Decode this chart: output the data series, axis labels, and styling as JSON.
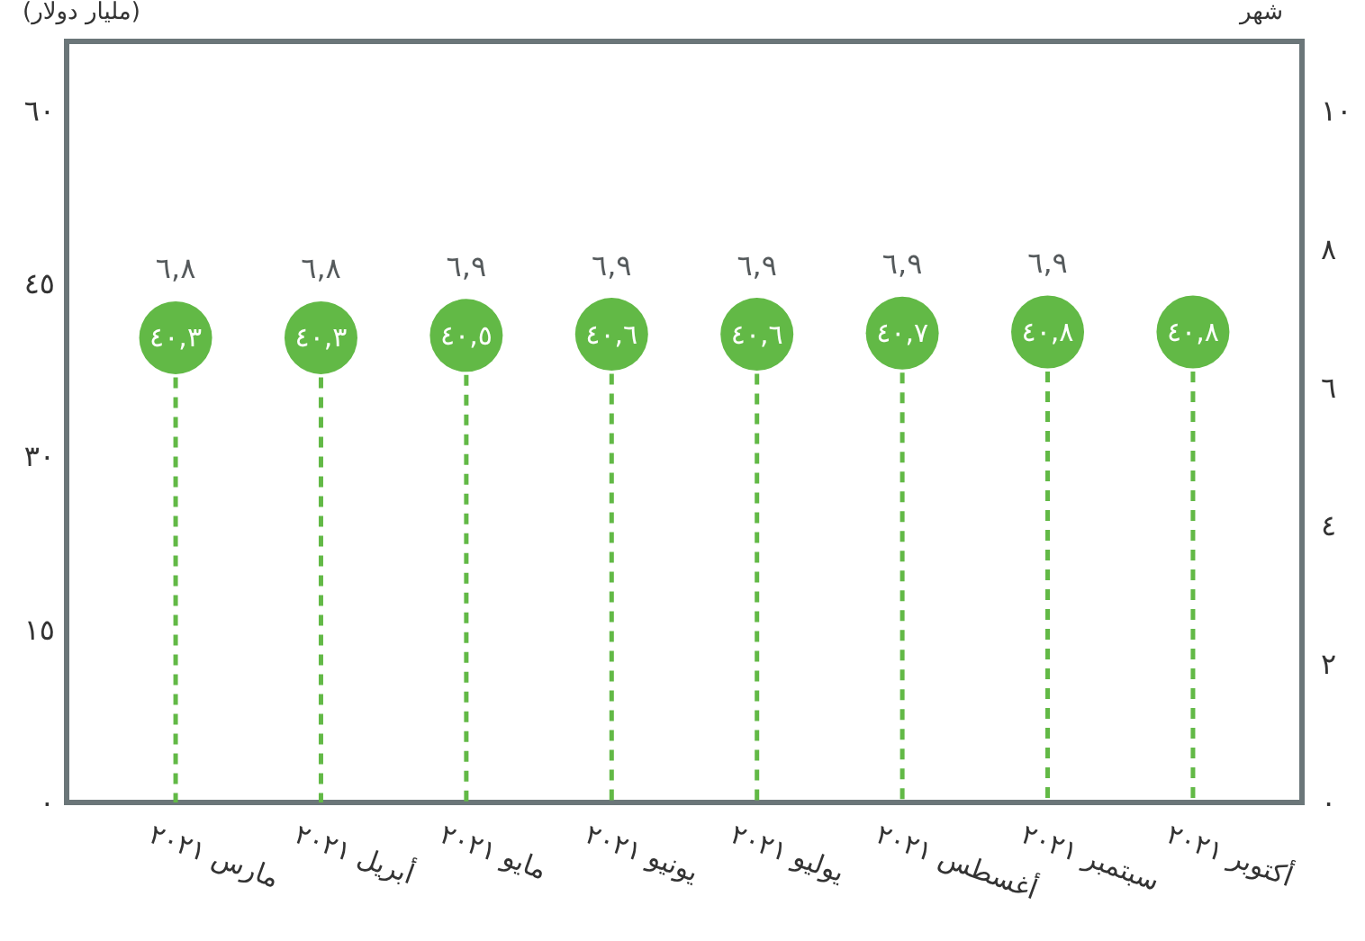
{
  "chart_data": {
    "type": "lollipop",
    "ylabel": "(مليار دولار)",
    "y2label": "شهر",
    "categories": [
      "مارس ٢٠٢١",
      "أبريل ٢٠٢١",
      "مايو ٢٠٢١",
      "يونيو ٢٠٢١",
      "يوليو ٢٠٢١",
      "أغسطس ٢٠٢١",
      "سبتمبر ٢٠٢١",
      "أكتوبر ٢٠٢١"
    ],
    "series": [
      {
        "color": "#62b946",
        "values": [
          40.3,
          40.3,
          40.5,
          40.6,
          40.6,
          40.7,
          40.8,
          40.8
        ],
        "value_labels": [
          "٤٠,٣",
          "٤٠,٣",
          "٤٠,٥",
          "٤٠,٦",
          "٤٠,٦",
          "٤٠,٧",
          "٤٠,٨",
          "٤٠,٨"
        ]
      }
    ],
    "marker": "circle",
    "line_style": "dashed",
    "annotations": [
      {
        "text": "٦,٨",
        "x": "مارس ٢٠٢١",
        "y": 40.3
      },
      {
        "text": "٦,٨",
        "x": "أبريل ٢٠٢١",
        "y": 40.3
      },
      {
        "text": "٦,٩",
        "x": "مايو ٢٠٢١",
        "y": 40.5
      },
      {
        "text": "٦,٩",
        "x": "يونيو ٢٠٢١",
        "y": 40.6
      },
      {
        "text": "٦,٩",
        "x": "يوليو ٢٠٢١",
        "y": 40.6
      },
      {
        "text": "٦,٩",
        "x": "أغسطس ٢٠٢١",
        "y": 40.7
      },
      {
        "text": "٦,٩",
        "x": "سبتمبر ٢٠٢١",
        "y": 40.8
      }
    ],
    "ylim": [
      0,
      66
    ],
    "yticks": [
      {
        "value": 0,
        "label": "٠"
      },
      {
        "value": 15,
        "label": "١٥"
      },
      {
        "value": 30,
        "label": "٣٠"
      },
      {
        "value": 45,
        "label": "٤٥"
      },
      {
        "value": 60,
        "label": "٦٠"
      }
    ],
    "y2lim": [
      0,
      11
    ],
    "y2ticks": [
      {
        "value": 0,
        "label": "٠"
      },
      {
        "value": 2,
        "label": "٢"
      },
      {
        "value": 4,
        "label": "٤"
      },
      {
        "value": 6,
        "label": "٦"
      },
      {
        "value": 8,
        "label": "٨"
      },
      {
        "value": 10,
        "label": "١٠"
      }
    ]
  }
}
